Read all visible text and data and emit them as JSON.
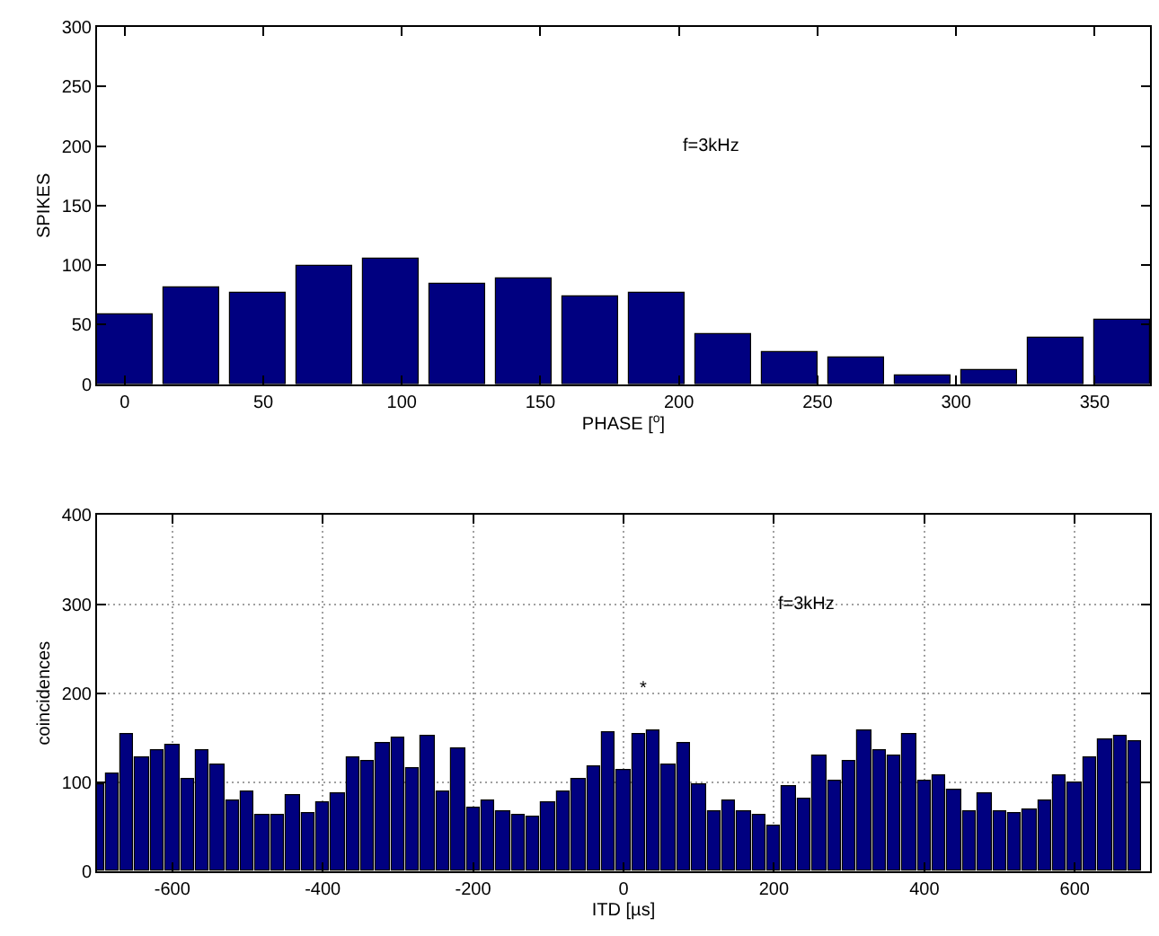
{
  "chart_data": [
    {
      "type": "bar",
      "x": [
        0,
        24,
        48,
        72,
        96,
        120,
        144,
        168,
        192,
        216,
        240,
        264,
        288,
        312,
        336,
        360
      ],
      "values": [
        58,
        81,
        76,
        99,
        106,
        84,
        89,
        74,
        77,
        42,
        27,
        22,
        7,
        12,
        39,
        54
      ],
      "color": "#000080",
      "xlim": [
        -10,
        370
      ],
      "xticks": [
        0,
        50,
        100,
        150,
        200,
        250,
        300,
        350
      ],
      "ylim": [
        0,
        300
      ],
      "yticks": [
        0,
        50,
        100,
        150,
        200,
        250,
        300
      ],
      "xlabel": "PHASE [$^{o}$]",
      "ylabel": "SPIKES",
      "annotations": [
        "f=3kHz"
      ]
    },
    {
      "type": "bar",
      "x": [
        -700,
        -680,
        -660,
        -640,
        -620,
        -600,
        -580,
        -560,
        -540,
        -520,
        -500,
        -480,
        -460,
        -440,
        -420,
        -400,
        -380,
        -360,
        -340,
        -320,
        -300,
        -280,
        -260,
        -240,
        -220,
        -200,
        -180,
        -160,
        -140,
        -120,
        -100,
        -80,
        -60,
        -40,
        -20,
        0,
        20,
        40,
        60,
        80,
        100,
        120,
        140,
        160,
        180,
        200,
        220,
        240,
        260,
        280,
        300,
        320,
        340,
        360,
        380,
        400,
        420,
        440,
        460,
        480,
        500,
        520,
        540,
        560,
        580,
        600,
        620,
        640,
        660,
        680
      ],
      "values": [
        98,
        109,
        153,
        127,
        135,
        141,
        103,
        135,
        119,
        79,
        89,
        63,
        63,
        85,
        65,
        77,
        87,
        127,
        123,
        143,
        150,
        115,
        151,
        89,
        137,
        71,
        79,
        67,
        63,
        61,
        77,
        89,
        103,
        117,
        155,
        113,
        153,
        157,
        119,
        144,
        97,
        67,
        79,
        67,
        63,
        52,
        95,
        81,
        129,
        101,
        123,
        159,
        135,
        129,
        153,
        101,
        107,
        91,
        67,
        87,
        67,
        65,
        69,
        79,
        107,
        99,
        127,
        147,
        151,
        146
      ],
      "color": "#000080",
      "xlim": [
        -700,
        700
      ],
      "xticks": [
        -600,
        -400,
        -200,
        0,
        200,
        400,
        600
      ],
      "ylim": [
        0,
        400
      ],
      "yticks": [
        0,
        100,
        200,
        300,
        400
      ],
      "grid": true,
      "xlabel": "ITD [µs]",
      "ylabel": "coincidences",
      "annotations": [
        "f=3kHz",
        "*"
      ]
    }
  ]
}
